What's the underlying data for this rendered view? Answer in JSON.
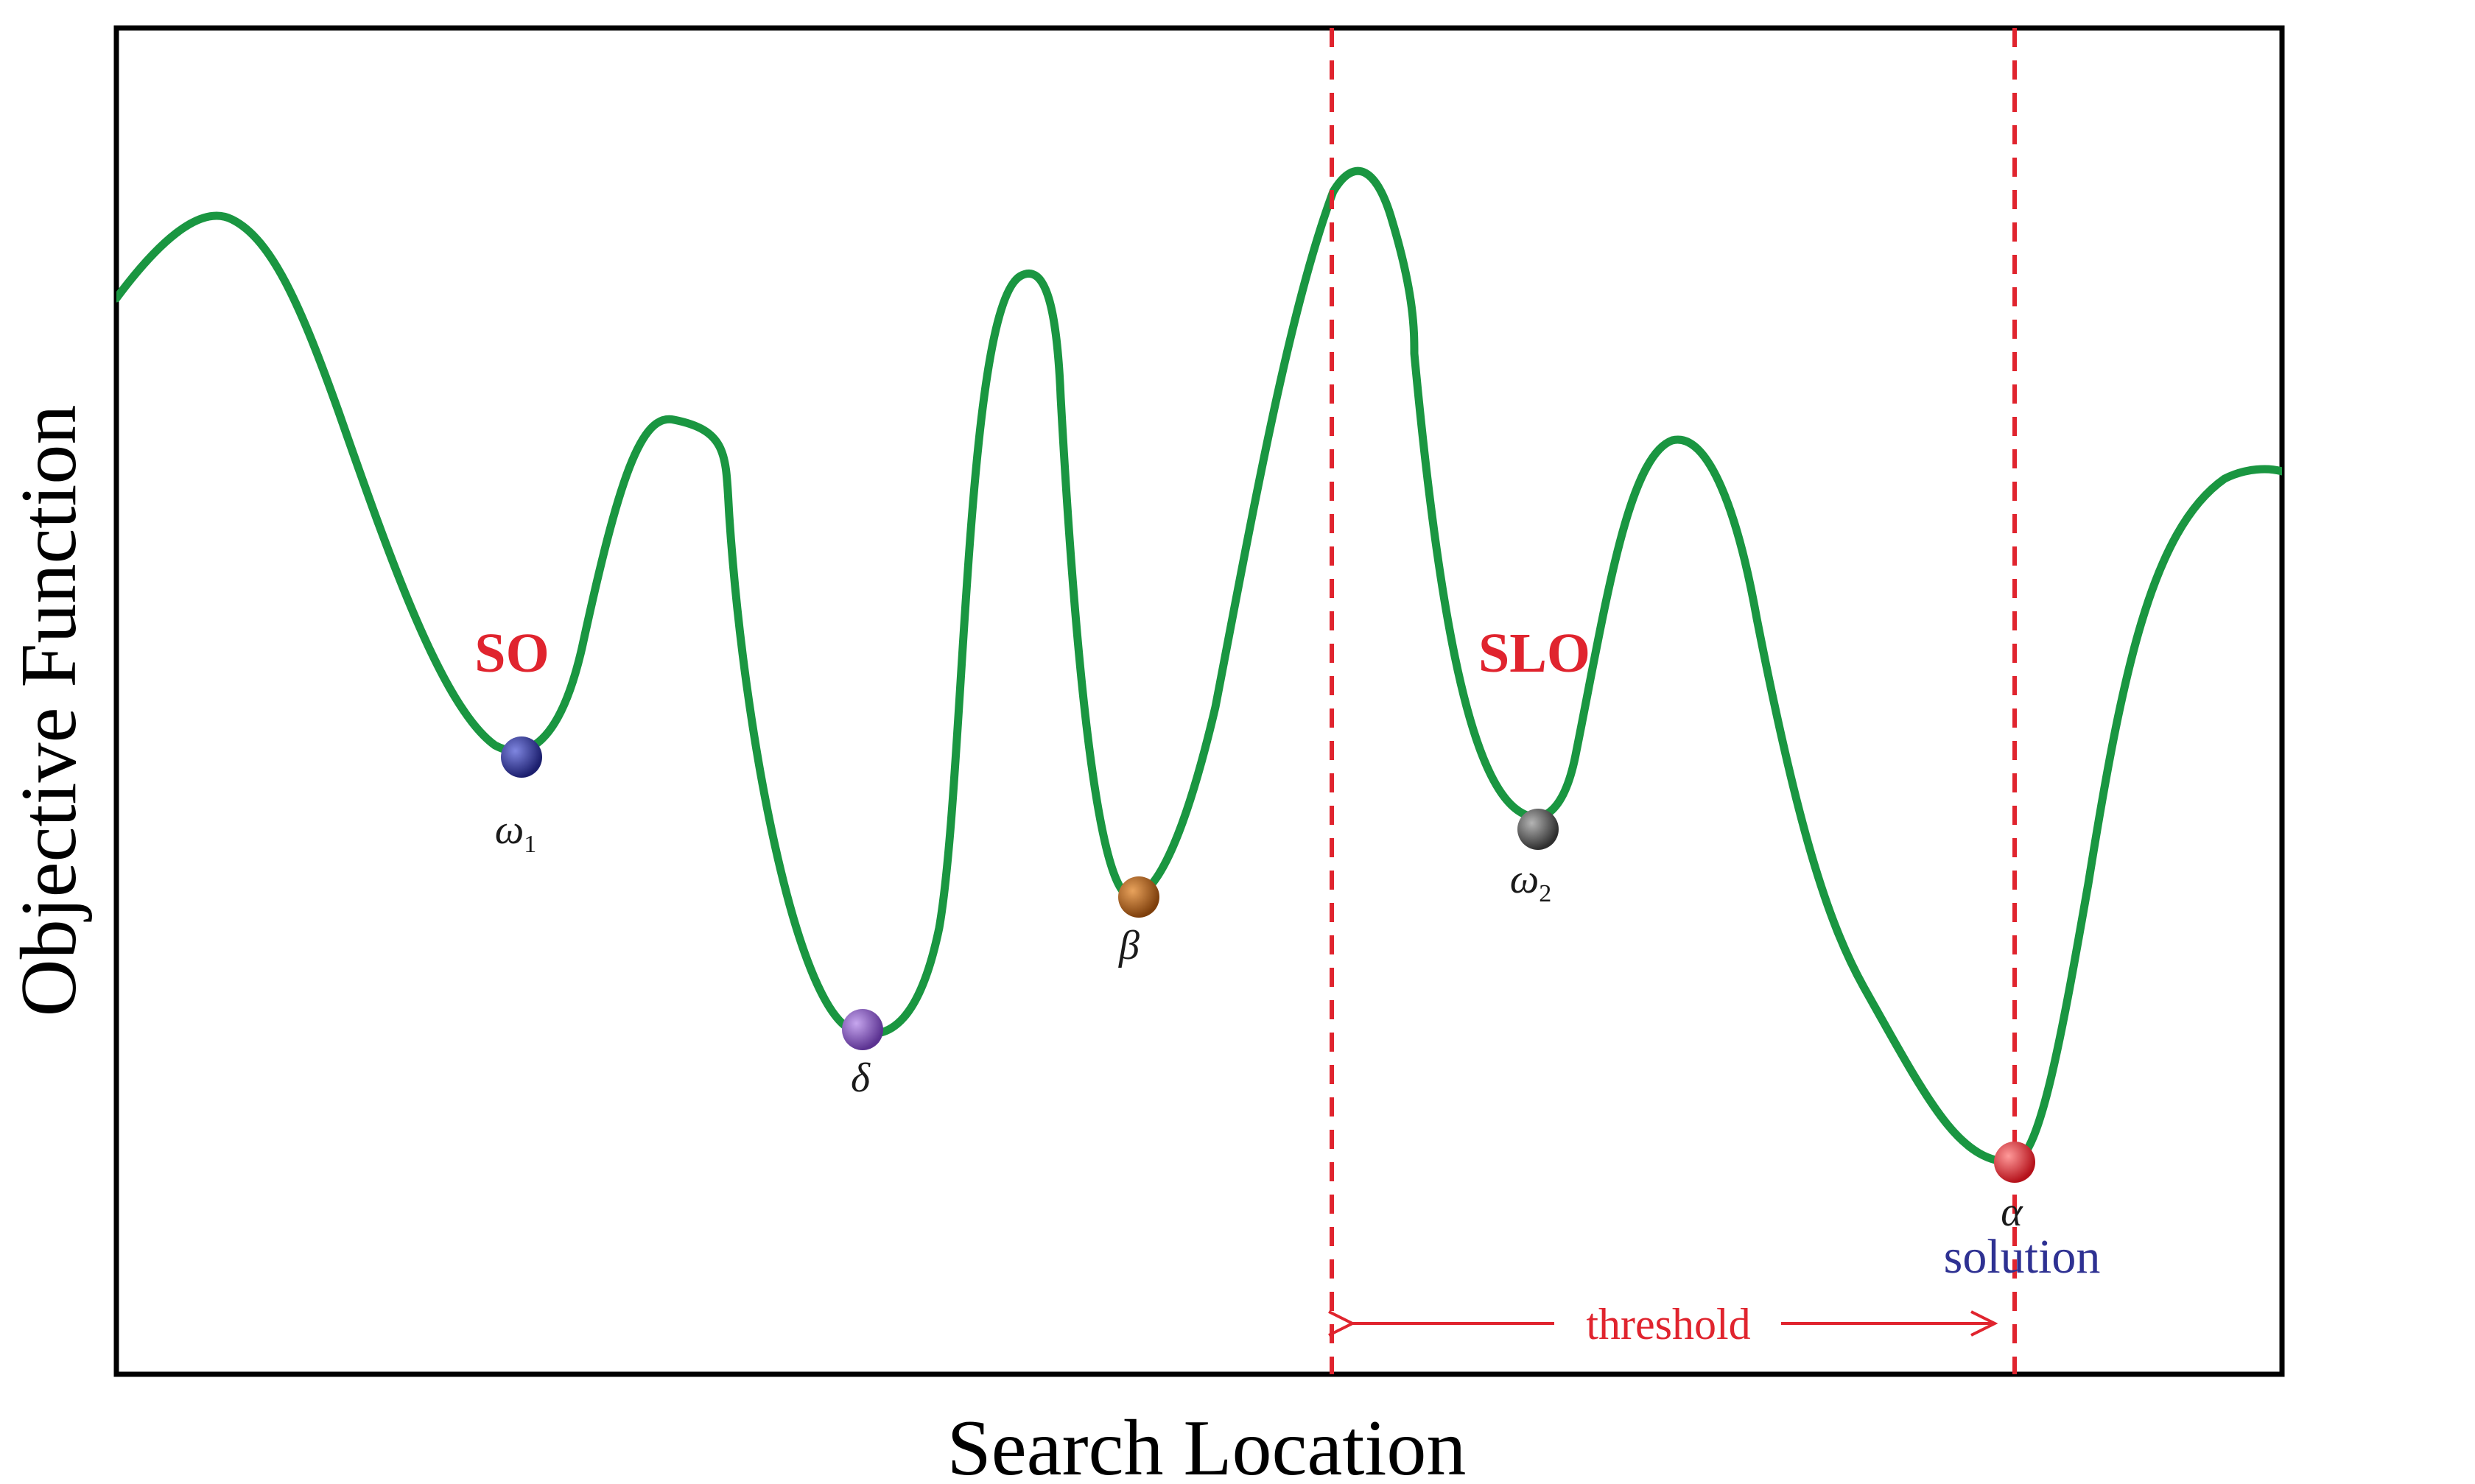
{
  "axes": {
    "x_title": "Search Location",
    "y_title": "Objective Function"
  },
  "regions": {
    "so_label": "SO",
    "slo_label": "SLO"
  },
  "points": {
    "omega1": {
      "symbol": "ω",
      "subscript": "1",
      "color": "#2e3192"
    },
    "delta": {
      "symbol": "δ",
      "subscript": "",
      "color": "#7b4fb5"
    },
    "beta": {
      "symbol": "β",
      "subscript": "",
      "color": "#b0621a"
    },
    "omega2": {
      "symbol": "ω",
      "subscript": "2",
      "color": "#555555"
    },
    "alpha": {
      "symbol": "α",
      "subscript": "",
      "color": "#ed1c24"
    }
  },
  "annotations": {
    "solution_label": "solution",
    "threshold_label": "threshold"
  },
  "colors": {
    "curve": "#1a9641",
    "frame": "#000000",
    "accent_red": "#e0242e",
    "solution_blue": "#2e3192"
  }
}
